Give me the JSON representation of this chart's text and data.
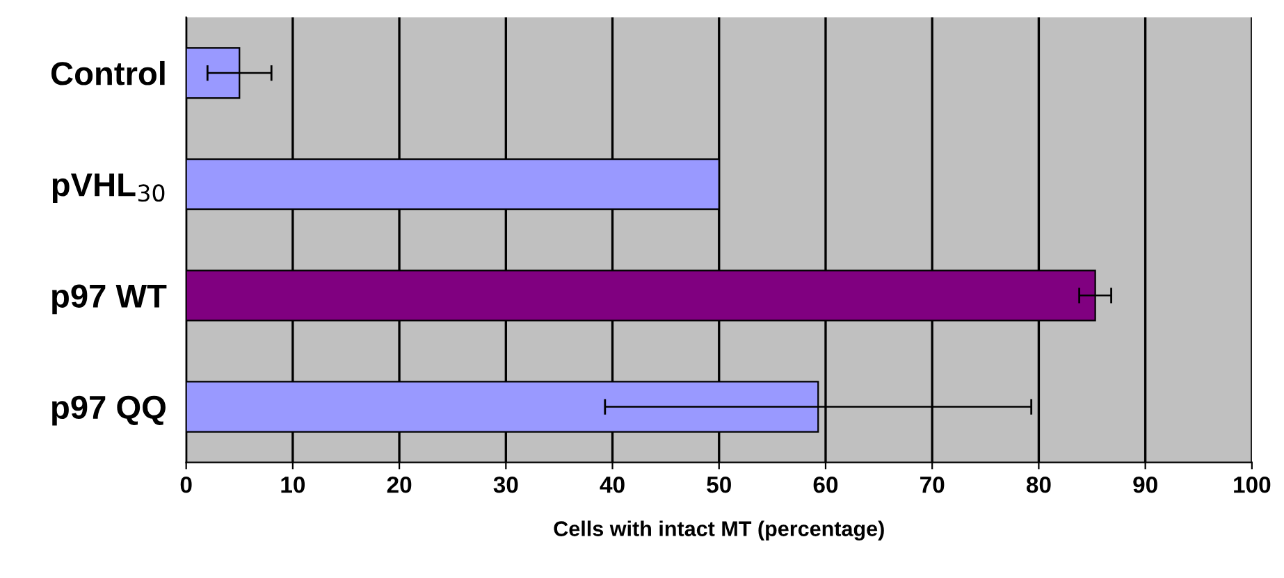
{
  "chart_data": {
    "type": "bar",
    "orientation": "horizontal",
    "xlabel": "Cells with intact MT (percentage)",
    "categories": [
      "Control",
      "pVHL$_{30}$",
      "p97 WT",
      "p97 QQ"
    ],
    "values": [
      5,
      50,
      85.3,
      59.3
    ],
    "errors": [
      3,
      null,
      1.5,
      20
    ],
    "colors": [
      "#9999ff",
      "#9999ff",
      "#800080",
      "#9999ff"
    ],
    "xlim": [
      0,
      100
    ],
    "xticks": [
      0,
      10,
      20,
      30,
      40,
      50,
      60,
      70,
      80,
      90,
      100
    ],
    "grid": "x"
  }
}
